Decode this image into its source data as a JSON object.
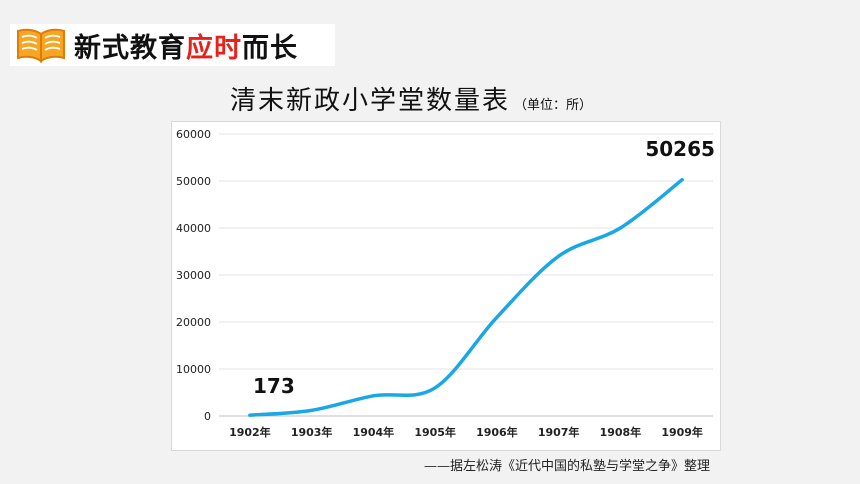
{
  "header": {
    "icon": "open-book-icon",
    "title_part1": "新式教育",
    "title_part2": "应时",
    "title_part3": "而长",
    "accent_color": "#e8221b"
  },
  "chart_title": {
    "main": "清末新政小学堂数量表",
    "unit": "（单位：所）"
  },
  "chart_data": {
    "type": "line",
    "categories": [
      "1902年",
      "1903年",
      "1904年",
      "1905年",
      "1906年",
      "1907年",
      "1908年",
      "1909年"
    ],
    "values": [
      173,
      1200,
      4300,
      6000,
      21000,
      34000,
      40000,
      50265
    ],
    "ylim": [
      0,
      60000
    ],
    "yticks": [
      "0",
      "10000",
      "20000",
      "30000",
      "40000",
      "50000",
      "60000"
    ],
    "data_labels": [
      {
        "index": 0,
        "text": "173"
      },
      {
        "index": 7,
        "text": "50265"
      }
    ],
    "line_color": "#1aa7e6",
    "grid": true,
    "legend": "none"
  },
  "source": "——据左松涛《近代中国的私塾与学堂之争》整理"
}
